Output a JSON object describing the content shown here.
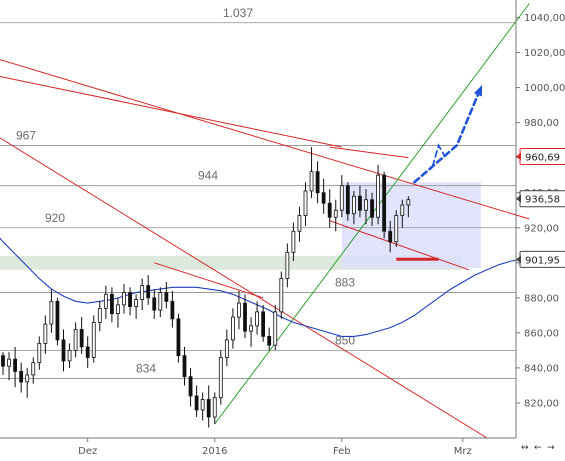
{
  "chart_data": {
    "type": "candlestick",
    "y_axis": {
      "position": "right",
      "range": [
        800,
        1050
      ],
      "ticks": [
        820,
        840,
        860,
        880,
        900,
        920,
        940,
        960,
        980,
        1000,
        1020,
        1040
      ],
      "tick_labels": [
        "820,00",
        "840,00",
        "860,00",
        "880,00",
        "900,00",
        "920,00",
        "940,00",
        "960,00",
        "980,00",
        "1000,00",
        "1020,00",
        "1040,00"
      ]
    },
    "x_axis": {
      "labels": [
        {
          "text": "Dez",
          "bar": 14
        },
        {
          "text": "2016",
          "bar": 35
        },
        {
          "text": "Feb",
          "bar": 56
        },
        {
          "text": "Mrz",
          "bar": 76
        }
      ],
      "bar_count_visible": 87
    },
    "horizontal_levels": [
      {
        "value": 1037,
        "label": "1.037"
      },
      {
        "value": 967,
        "label": "967"
      },
      {
        "value": 944,
        "label": "944"
      },
      {
        "value": 920,
        "label": "920"
      },
      {
        "value": 883,
        "label": "883"
      },
      {
        "value": 850,
        "label": "850"
      },
      {
        "value": 834,
        "label": "834"
      }
    ],
    "price_tags": [
      {
        "value": 960.69,
        "label": "960,69",
        "color": "#d62728"
      },
      {
        "value": 936.58,
        "label": "936,58",
        "color": "#444444"
      },
      {
        "value": 901.95,
        "label": "901,95",
        "color": "#444444"
      }
    ],
    "candles": [
      [
        847,
        849,
        836,
        841
      ],
      [
        841,
        849,
        833,
        845
      ],
      [
        845,
        852,
        829,
        838
      ],
      [
        838,
        843,
        826,
        832
      ],
      [
        832,
        840,
        823,
        836
      ],
      [
        836,
        846,
        831,
        843
      ],
      [
        843,
        858,
        839,
        854
      ],
      [
        854,
        870,
        848,
        865
      ],
      [
        865,
        885,
        860,
        878
      ],
      [
        878,
        880,
        853,
        856
      ],
      [
        856,
        862,
        838,
        844
      ],
      [
        844,
        854,
        840,
        850
      ],
      [
        850,
        866,
        846,
        862
      ],
      [
        862,
        869,
        848,
        852
      ],
      [
        852,
        858,
        840,
        846
      ],
      [
        846,
        870,
        843,
        866
      ],
      [
        866,
        878,
        861,
        874
      ],
      [
        874,
        887,
        868,
        882
      ],
      [
        882,
        886,
        866,
        871
      ],
      [
        871,
        880,
        863,
        876
      ],
      [
        876,
        888,
        871,
        883
      ],
      [
        883,
        886,
        870,
        875
      ],
      [
        875,
        882,
        868,
        879
      ],
      [
        879,
        891,
        873,
        887
      ],
      [
        887,
        893,
        876,
        880
      ],
      [
        880,
        885,
        868,
        873
      ],
      [
        873,
        886,
        869,
        883
      ],
      [
        883,
        889,
        874,
        878
      ],
      [
        878,
        884,
        863,
        868
      ],
      [
        868,
        871,
        843,
        847
      ],
      [
        847,
        852,
        830,
        835
      ],
      [
        835,
        840,
        818,
        824
      ],
      [
        824,
        830,
        812,
        816
      ],
      [
        816,
        826,
        810,
        822
      ],
      [
        822,
        830,
        806,
        812
      ],
      [
        812,
        826,
        808,
        823
      ],
      [
        823,
        850,
        819,
        846
      ],
      [
        846,
        862,
        841,
        856
      ],
      [
        856,
        874,
        851,
        869
      ],
      [
        869,
        884,
        862,
        877
      ],
      [
        877,
        882,
        857,
        861
      ],
      [
        861,
        869,
        852,
        864
      ],
      [
        864,
        878,
        859,
        872
      ],
      [
        872,
        876,
        855,
        858
      ],
      [
        858,
        863,
        850,
        853
      ],
      [
        853,
        876,
        850,
        872
      ],
      [
        872,
        895,
        868,
        891
      ],
      [
        891,
        911,
        886,
        906
      ],
      [
        906,
        923,
        901,
        918
      ],
      [
        918,
        932,
        912,
        927
      ],
      [
        927,
        946,
        921,
        941
      ],
      [
        941,
        966,
        937,
        952
      ],
      [
        952,
        958,
        934,
        940
      ],
      [
        940,
        948,
        928,
        934
      ],
      [
        934,
        942,
        920,
        926
      ],
      [
        926,
        936,
        918,
        930
      ],
      [
        930,
        950,
        926,
        944
      ],
      [
        944,
        946,
        924,
        928
      ],
      [
        928,
        941,
        922,
        938
      ],
      [
        938,
        944,
        926,
        930
      ],
      [
        930,
        942,
        922,
        936
      ],
      [
        936,
        940,
        921,
        926
      ],
      [
        926,
        956,
        922,
        950
      ],
      [
        950,
        952,
        914,
        918
      ],
      [
        918,
        924,
        906,
        912
      ],
      [
        912,
        930,
        909,
        927
      ],
      [
        927,
        936,
        920,
        933
      ],
      [
        933,
        938,
        926,
        936
      ]
    ],
    "moving_average": {
      "color": "#1f3fbf",
      "values": [
        928,
        920,
        912,
        905,
        898,
        891,
        885,
        881,
        878,
        877,
        878,
        879,
        881,
        883,
        884,
        885,
        886,
        886,
        886,
        885,
        884,
        882,
        879,
        876,
        873,
        869,
        866,
        864,
        862,
        860,
        858,
        858,
        859,
        861,
        863,
        866,
        870,
        875,
        880,
        885,
        889,
        893,
        896,
        899,
        901,
        902
      ]
    },
    "trendlines": [
      {
        "color": "#d62728",
        "from": {
          "bar": -14,
          "value": 1030
        },
        "to": {
          "bar": 87,
          "value": 925
        }
      },
      {
        "color": "#d62728",
        "from": {
          "bar": -14,
          "value": 1016
        },
        "to": {
          "bar": 56,
          "value": 966
        }
      },
      {
        "color": "#d62728",
        "from": {
          "bar": 54,
          "value": 966
        },
        "to": {
          "bar": 67,
          "value": 960
        }
      },
      {
        "color": "#d62728",
        "from": {
          "bar": 54,
          "value": 924
        },
        "to": {
          "bar": 77,
          "value": 896
        }
      },
      {
        "color": "#d62728",
        "from": {
          "bar": 25,
          "value": 900
        },
        "to": {
          "bar": 43,
          "value": 880
        }
      },
      {
        "color": "#d62728",
        "from": {
          "bar": -14,
          "value": 1000
        },
        "to": {
          "bar": 80,
          "value": 800
        }
      },
      {
        "color": "#2e9e2e",
        "from": {
          "bar": 35,
          "value": 808
        },
        "to": {
          "bar": 87,
          "value": 1048
        }
      }
    ],
    "support_marker": {
      "color": "#d62728",
      "bar_from": 65,
      "bar_to": 72,
      "value": 902
    },
    "support_zone": {
      "color": "#dde9dd",
      "value_low": 896,
      "value_high": 904
    },
    "projection_box": {
      "color": "#dcdffb",
      "bar_from": 56,
      "bar_to": 79,
      "value_top": 946,
      "value_bottom": 897
    },
    "projection_arrows": [
      {
        "color": "#1f55d6",
        "dashed": true,
        "points": [
          [
            68,
            946
          ],
          [
            75,
            967
          ],
          [
            79,
            1000
          ]
        ]
      },
      {
        "color": "#1f55d6",
        "dashed": true,
        "points": [
          [
            71,
            955
          ],
          [
            72,
            967
          ],
          [
            73,
            961
          ]
        ]
      }
    ]
  }
}
